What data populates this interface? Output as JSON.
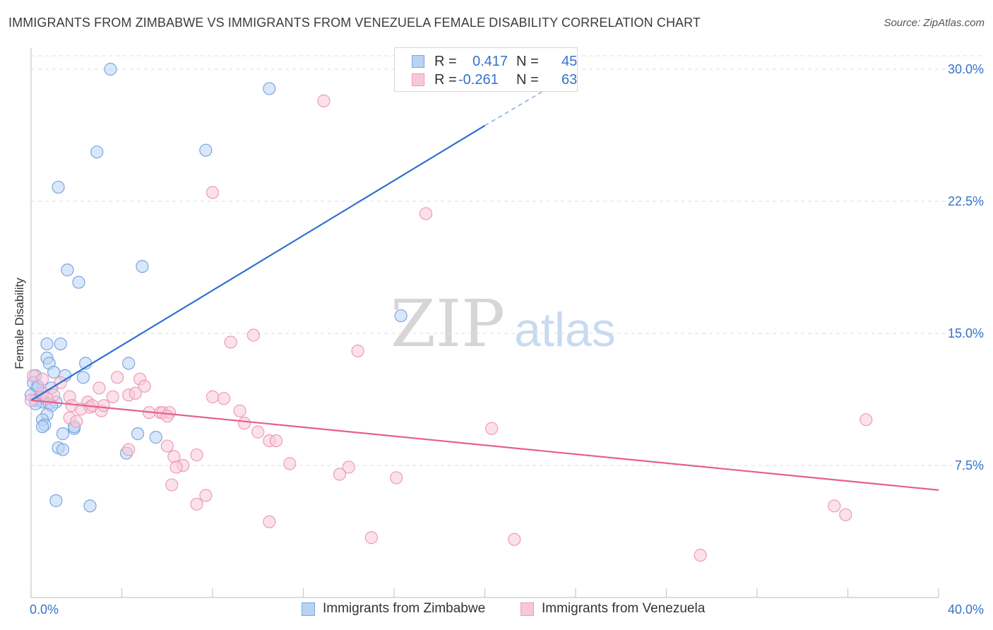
{
  "header": {
    "title": "IMMIGRANTS FROM ZIMBABWE VS IMMIGRANTS FROM VENEZUELA FEMALE DISABILITY CORRELATION CHART",
    "source": "Source: ZipAtlas.com"
  },
  "watermark": {
    "zip": "ZIP",
    "atlas": "atlas"
  },
  "legend_top": {
    "rows": [
      {
        "r_label": "R =",
        "r_value": "0.417",
        "n_label": "N =",
        "n_value": "45"
      },
      {
        "r_label": "R =",
        "r_value": "-0.261",
        "n_label": "N =",
        "n_value": "63"
      }
    ]
  },
  "legend_bottom": {
    "items": [
      "Immigrants from Zimbabwe",
      "Immigrants from Venezuela"
    ]
  },
  "colors": {
    "zimbabwe_fill": "#b9d3f5",
    "zimbabwe_stroke": "#7aa6e0",
    "zimbabwe_line": "#2f6fd0",
    "venezuela_fill": "#f8c8d8",
    "venezuela_stroke": "#ee9bb6",
    "venezuela_line": "#e5608e",
    "axis_text": "#3572c9",
    "grid": "#dddddd"
  },
  "chart_data": {
    "type": "scatter",
    "title": "IMMIGRANTS FROM ZIMBABWE VS IMMIGRANTS FROM VENEZUELA FEMALE DISABILITY CORRELATION CHART",
    "xlabel": "",
    "ylabel": "Female Disability",
    "xlim": [
      0,
      40
    ],
    "ylim": [
      0,
      31
    ],
    "x_tick_labels": [
      "0.0%",
      "40.0%"
    ],
    "y_ticks": [
      7.5,
      15.0,
      22.5,
      30.0
    ],
    "y_tick_labels": [
      "7.5%",
      "15.0%",
      "22.5%",
      "30.0%"
    ],
    "grid": "horizontal dashed",
    "legend_position": "top-center",
    "series": [
      {
        "name": "Immigrants from Zimbabwe",
        "R": 0.417,
        "N": 45,
        "trend": {
          "x": [
            0.0,
            20.0
          ],
          "y": [
            11.2,
            26.8
          ],
          "dashed_to": [
            22.5,
            28.7
          ]
        },
        "points": [
          [
            3.5,
            30.0
          ],
          [
            10.5,
            28.9
          ],
          [
            2.9,
            25.3
          ],
          [
            7.7,
            25.4
          ],
          [
            1.2,
            23.3
          ],
          [
            1.6,
            18.6
          ],
          [
            2.1,
            17.9
          ],
          [
            4.9,
            18.8
          ],
          [
            16.3,
            16.0
          ],
          [
            0.7,
            14.4
          ],
          [
            1.3,
            14.4
          ],
          [
            0.7,
            13.6
          ],
          [
            0.8,
            13.3
          ],
          [
            2.4,
            13.3
          ],
          [
            4.3,
            13.3
          ],
          [
            1.0,
            12.8
          ],
          [
            1.5,
            12.6
          ],
          [
            2.3,
            12.5
          ],
          [
            0.2,
            12.6
          ],
          [
            0.1,
            12.2
          ],
          [
            0.3,
            11.9
          ],
          [
            0.9,
            11.9
          ],
          [
            0.4,
            11.4
          ],
          [
            0.0,
            11.5
          ],
          [
            0.2,
            11.2
          ],
          [
            0.5,
            11.1
          ],
          [
            0.8,
            11.0
          ],
          [
            1.1,
            11.1
          ],
          [
            0.9,
            10.9
          ],
          [
            0.2,
            11.0
          ],
          [
            0.7,
            10.4
          ],
          [
            0.5,
            10.1
          ],
          [
            0.6,
            9.8
          ],
          [
            0.5,
            9.7
          ],
          [
            1.4,
            9.3
          ],
          [
            1.9,
            9.6
          ],
          [
            1.9,
            9.7
          ],
          [
            4.7,
            9.3
          ],
          [
            5.5,
            9.1
          ],
          [
            1.2,
            8.5
          ],
          [
            1.4,
            8.4
          ],
          [
            4.2,
            8.2
          ],
          [
            1.1,
            5.5
          ],
          [
            2.6,
            5.2
          ],
          [
            0.3,
            12.0
          ]
        ]
      },
      {
        "name": "Immigrants from Venezuela",
        "R": -0.261,
        "N": 63,
        "trend": {
          "x": [
            0.0,
            40.0
          ],
          "y": [
            11.2,
            6.1
          ]
        },
        "points": [
          [
            12.9,
            28.2
          ],
          [
            8.0,
            23.0
          ],
          [
            17.4,
            21.8
          ],
          [
            8.8,
            14.5
          ],
          [
            9.8,
            14.9
          ],
          [
            14.4,
            14.0
          ],
          [
            0.1,
            12.6
          ],
          [
            0.5,
            12.4
          ],
          [
            1.3,
            12.2
          ],
          [
            3.8,
            12.5
          ],
          [
            4.8,
            12.4
          ],
          [
            5.0,
            12.0
          ],
          [
            3.0,
            11.9
          ],
          [
            0.5,
            11.6
          ],
          [
            4.3,
            11.5
          ],
          [
            4.6,
            11.6
          ],
          [
            1.0,
            11.5
          ],
          [
            1.7,
            11.4
          ],
          [
            3.6,
            11.4
          ],
          [
            8.0,
            11.4
          ],
          [
            8.5,
            11.3
          ],
          [
            0.0,
            11.2
          ],
          [
            0.7,
            11.3
          ],
          [
            2.5,
            11.1
          ],
          [
            1.8,
            10.9
          ],
          [
            2.2,
            10.7
          ],
          [
            2.6,
            10.8
          ],
          [
            2.7,
            10.9
          ],
          [
            3.1,
            10.6
          ],
          [
            3.2,
            10.9
          ],
          [
            9.2,
            10.6
          ],
          [
            5.2,
            10.5
          ],
          [
            5.7,
            10.5
          ],
          [
            5.8,
            10.5
          ],
          [
            6.1,
            10.5
          ],
          [
            6.0,
            10.3
          ],
          [
            1.7,
            10.2
          ],
          [
            2.0,
            10.0
          ],
          [
            9.4,
            9.9
          ],
          [
            10.0,
            9.4
          ],
          [
            20.3,
            9.6
          ],
          [
            36.8,
            10.1
          ],
          [
            10.5,
            8.9
          ],
          [
            10.8,
            8.9
          ],
          [
            6.0,
            8.6
          ],
          [
            4.3,
            8.4
          ],
          [
            7.3,
            8.1
          ],
          [
            6.3,
            8.0
          ],
          [
            6.7,
            7.5
          ],
          [
            6.4,
            7.4
          ],
          [
            11.4,
            7.6
          ],
          [
            14.0,
            7.4
          ],
          [
            13.6,
            7.0
          ],
          [
            16.1,
            6.8
          ],
          [
            6.2,
            6.4
          ],
          [
            7.7,
            5.8
          ],
          [
            7.3,
            5.3
          ],
          [
            35.4,
            5.2
          ],
          [
            35.9,
            4.7
          ],
          [
            10.5,
            4.3
          ],
          [
            15.0,
            3.4
          ],
          [
            21.3,
            3.3
          ],
          [
            29.5,
            2.4
          ]
        ]
      }
    ]
  }
}
